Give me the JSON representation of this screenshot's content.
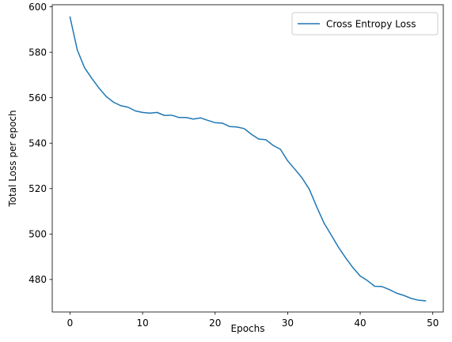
{
  "chart_data": {
    "type": "line",
    "title": "",
    "xlabel": "Epochs",
    "ylabel": "Total Loss per epoch",
    "xlim": [
      -2.45,
      51.45
    ],
    "ylim": [
      465.7,
      600.9
    ],
    "xticks": [
      0,
      10,
      20,
      30,
      40,
      50
    ],
    "yticks": [
      480,
      500,
      520,
      540,
      560,
      580,
      600
    ],
    "grid": false,
    "legend": "top-right",
    "line_color": "#1f77b4",
    "series": [
      {
        "name": "Cross Entropy Loss",
        "x": [
          0,
          1,
          2,
          3,
          4,
          5,
          6,
          7,
          8,
          9,
          10,
          11,
          12,
          13,
          14,
          15,
          16,
          17,
          18,
          19,
          20,
          21,
          22,
          23,
          24,
          25,
          26,
          27,
          28,
          29,
          30,
          31,
          32,
          33,
          34,
          35,
          36,
          37,
          38,
          39,
          40,
          41,
          42,
          43,
          44,
          45,
          46,
          47,
          48,
          49
        ],
        "y": [
          595.5,
          581.0,
          573.2,
          568.5,
          564.2,
          560.5,
          558.0,
          556.5,
          555.8,
          554.2,
          553.5,
          553.2,
          553.5,
          552.2,
          552.3,
          551.3,
          551.3,
          550.6,
          551.1,
          550.0,
          549.0,
          548.8,
          547.3,
          547.1,
          546.4,
          543.9,
          541.8,
          541.5,
          539.0,
          537.3,
          532.2,
          528.5,
          524.6,
          519.6,
          512.0,
          504.9,
          499.6,
          494.2,
          489.5,
          485.2,
          481.5,
          479.5,
          477.0,
          476.9,
          475.6,
          474.0,
          473.0,
          471.7,
          470.9,
          470.6
        ]
      }
    ]
  }
}
